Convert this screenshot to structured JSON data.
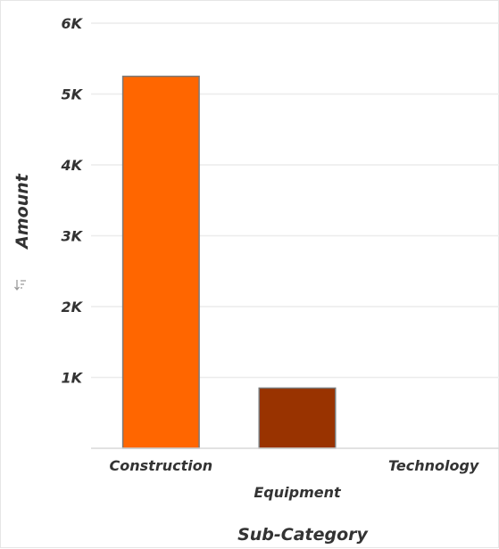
{
  "chart_data": {
    "type": "bar",
    "xlabel": "Sub-Category",
    "ylabel": "Amount",
    "categories": [
      "Construction",
      "Equipment",
      "Technology"
    ],
    "values": [
      5250,
      850,
      0
    ],
    "colors": [
      "#ff6600",
      "#993300",
      "#cccccc"
    ],
    "ylim": [
      0,
      6000
    ],
    "yticks": [
      1000,
      2000,
      3000,
      4000,
      5000,
      6000
    ],
    "ytick_labels": [
      "1K",
      "2K",
      "3K",
      "4K",
      "5K",
      "6K"
    ],
    "grid": true,
    "legend": "none"
  },
  "ui": {
    "sort_icon": "sort-icon"
  }
}
